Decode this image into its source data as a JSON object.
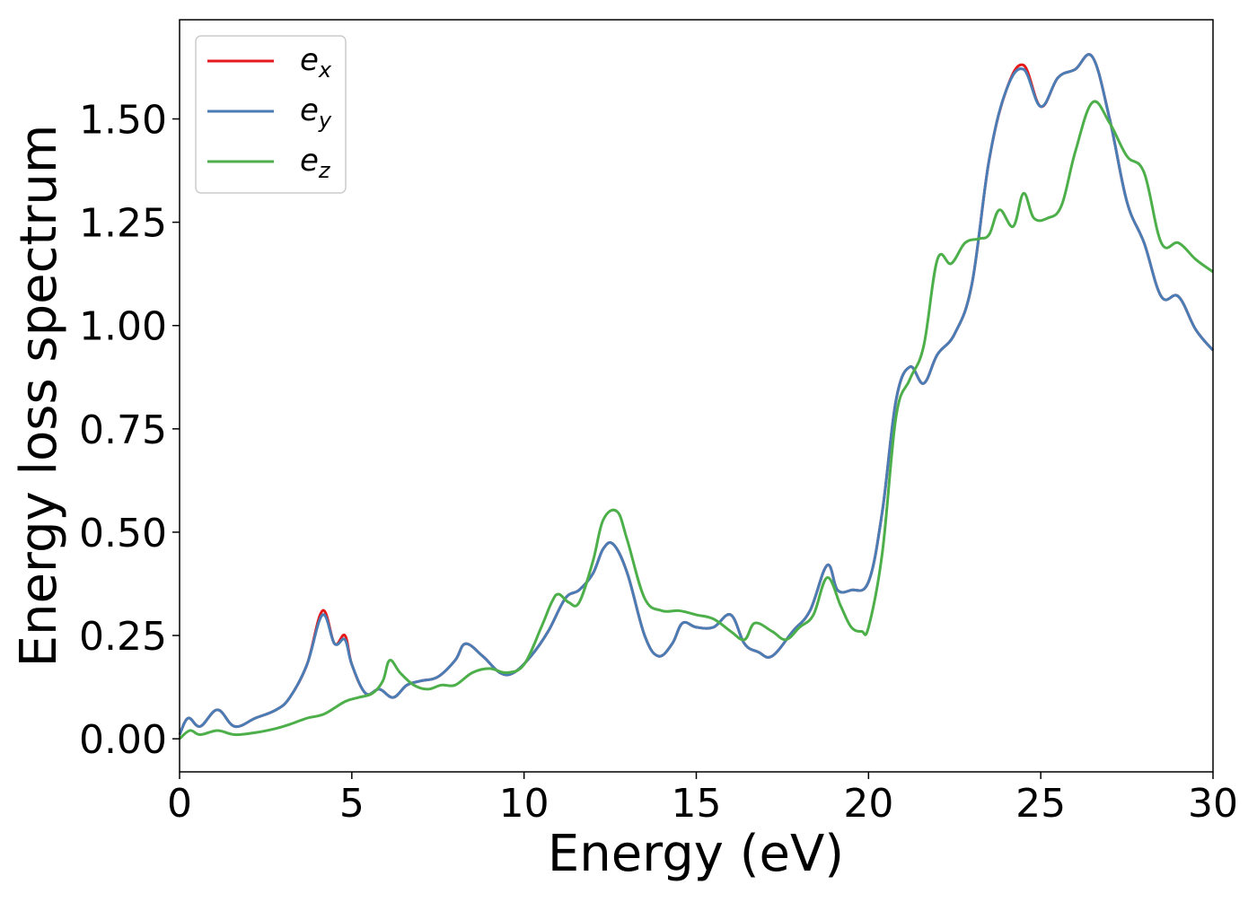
{
  "chart_data": {
    "type": "line",
    "title": "",
    "xlabel": "Energy (eV)",
    "ylabel": "Energy loss spectrum",
    "xlim": [
      0,
      30
    ],
    "ylim": [
      -0.08,
      1.74
    ],
    "xticks": [
      0,
      5,
      10,
      15,
      20,
      25,
      30
    ],
    "xtick_labels": [
      "0",
      "5",
      "10",
      "15",
      "20",
      "25",
      "30"
    ],
    "yticks": [
      0,
      0.25,
      0.5,
      0.75,
      1.0,
      1.25,
      1.5
    ],
    "ytick_labels": [
      "0.00",
      "0.25",
      "0.50",
      "0.75",
      "1.00",
      "1.25",
      "1.50"
    ],
    "grid": false,
    "legend_position": "top-left",
    "series": [
      {
        "name": "e_x",
        "legend_base": "e",
        "legend_sub": "x",
        "color": "#e41a1c",
        "x": [
          0,
          0.25,
          0.6,
          1.1,
          1.6,
          2.2,
          2.8,
          3.2,
          3.7,
          4.15,
          4.5,
          4.8,
          5.0,
          5.4,
          5.8,
          6.2,
          6.6,
          7.0,
          7.5,
          8.0,
          8.3,
          8.8,
          9.3,
          9.7,
          10.2,
          10.7,
          11.2,
          11.6,
          12.0,
          12.3,
          12.6,
          13.0,
          13.5,
          13.9,
          14.3,
          14.6,
          15.0,
          15.5,
          16.0,
          16.4,
          16.8,
          17.2,
          17.8,
          18.3,
          18.8,
          19.1,
          19.5,
          20.0,
          20.4,
          20.8,
          21.2,
          21.6,
          22.0,
          22.5,
          23.0,
          23.5,
          24.0,
          24.5,
          25.0,
          25.5,
          26.0,
          26.5,
          27.0,
          27.5,
          28.0,
          28.5,
          29.0,
          29.5,
          30.0
        ],
        "y": [
          0.01,
          0.05,
          0.03,
          0.07,
          0.03,
          0.05,
          0.07,
          0.1,
          0.18,
          0.31,
          0.23,
          0.25,
          0.18,
          0.11,
          0.12,
          0.1,
          0.13,
          0.14,
          0.15,
          0.19,
          0.23,
          0.2,
          0.16,
          0.16,
          0.2,
          0.26,
          0.34,
          0.36,
          0.4,
          0.46,
          0.47,
          0.4,
          0.25,
          0.2,
          0.23,
          0.28,
          0.27,
          0.27,
          0.3,
          0.23,
          0.21,
          0.2,
          0.26,
          0.31,
          0.42,
          0.36,
          0.36,
          0.38,
          0.55,
          0.82,
          0.9,
          0.86,
          0.93,
          0.98,
          1.1,
          1.4,
          1.57,
          1.63,
          1.53,
          1.6,
          1.62,
          1.65,
          1.5,
          1.3,
          1.2,
          1.07,
          1.07,
          0.99,
          0.94
        ]
      },
      {
        "name": "e_y",
        "legend_base": "e",
        "legend_sub": "y",
        "color": "#4a7db5",
        "x": [
          0,
          0.25,
          0.6,
          1.1,
          1.6,
          2.2,
          2.8,
          3.2,
          3.7,
          4.15,
          4.5,
          4.8,
          5.0,
          5.4,
          5.8,
          6.2,
          6.6,
          7.0,
          7.5,
          8.0,
          8.3,
          8.8,
          9.3,
          9.7,
          10.2,
          10.7,
          11.2,
          11.6,
          12.0,
          12.3,
          12.6,
          13.0,
          13.5,
          13.9,
          14.3,
          14.6,
          15.0,
          15.5,
          16.0,
          16.4,
          16.8,
          17.2,
          17.8,
          18.3,
          18.8,
          19.1,
          19.5,
          20.0,
          20.4,
          20.8,
          21.2,
          21.6,
          22.0,
          22.5,
          23.0,
          23.5,
          24.0,
          24.5,
          25.0,
          25.5,
          26.0,
          26.5,
          27.0,
          27.5,
          28.0,
          28.5,
          29.0,
          29.5,
          30.0
        ],
        "y": [
          0.01,
          0.05,
          0.03,
          0.07,
          0.03,
          0.05,
          0.07,
          0.1,
          0.18,
          0.3,
          0.23,
          0.24,
          0.18,
          0.11,
          0.12,
          0.1,
          0.13,
          0.14,
          0.15,
          0.19,
          0.23,
          0.2,
          0.16,
          0.16,
          0.2,
          0.26,
          0.34,
          0.36,
          0.4,
          0.46,
          0.47,
          0.4,
          0.25,
          0.2,
          0.23,
          0.28,
          0.27,
          0.27,
          0.3,
          0.23,
          0.21,
          0.2,
          0.26,
          0.31,
          0.42,
          0.36,
          0.36,
          0.38,
          0.55,
          0.82,
          0.9,
          0.86,
          0.93,
          0.98,
          1.1,
          1.4,
          1.57,
          1.62,
          1.53,
          1.6,
          1.62,
          1.65,
          1.5,
          1.3,
          1.2,
          1.07,
          1.07,
          0.99,
          0.94
        ]
      },
      {
        "name": "e_z",
        "legend_base": "e",
        "legend_sub": "z",
        "color": "#4daf4a",
        "x": [
          0,
          0.3,
          0.6,
          1.1,
          1.6,
          2.2,
          2.8,
          3.2,
          3.7,
          4.2,
          4.8,
          5.2,
          5.6,
          5.9,
          6.1,
          6.4,
          6.8,
          7.2,
          7.6,
          8.0,
          8.5,
          9.0,
          9.5,
          10.0,
          10.5,
          10.8,
          11.0,
          11.3,
          11.6,
          12.0,
          12.3,
          12.7,
          13.0,
          13.5,
          14.0,
          14.5,
          15.0,
          15.5,
          16.0,
          16.4,
          16.7,
          17.2,
          17.6,
          18.0,
          18.4,
          18.8,
          19.2,
          19.5,
          19.8,
          20.0,
          20.4,
          20.8,
          21.2,
          21.6,
          22.0,
          22.4,
          22.8,
          23.2,
          23.5,
          23.8,
          24.2,
          24.5,
          24.8,
          25.2,
          25.6,
          26.0,
          26.5,
          27.0,
          27.5,
          28.0,
          28.5,
          29.0,
          29.5,
          30.0
        ],
        "y": [
          0.0,
          0.02,
          0.01,
          0.02,
          0.01,
          0.015,
          0.025,
          0.035,
          0.05,
          0.06,
          0.09,
          0.1,
          0.11,
          0.14,
          0.19,
          0.16,
          0.13,
          0.12,
          0.13,
          0.13,
          0.16,
          0.17,
          0.16,
          0.18,
          0.27,
          0.33,
          0.35,
          0.33,
          0.33,
          0.43,
          0.53,
          0.55,
          0.48,
          0.34,
          0.31,
          0.31,
          0.3,
          0.29,
          0.26,
          0.24,
          0.28,
          0.26,
          0.24,
          0.27,
          0.3,
          0.39,
          0.32,
          0.27,
          0.26,
          0.27,
          0.45,
          0.78,
          0.87,
          0.95,
          1.16,
          1.15,
          1.2,
          1.21,
          1.22,
          1.28,
          1.24,
          1.32,
          1.26,
          1.26,
          1.29,
          1.42,
          1.54,
          1.49,
          1.41,
          1.37,
          1.2,
          1.2,
          1.16,
          1.13
        ]
      }
    ]
  }
}
